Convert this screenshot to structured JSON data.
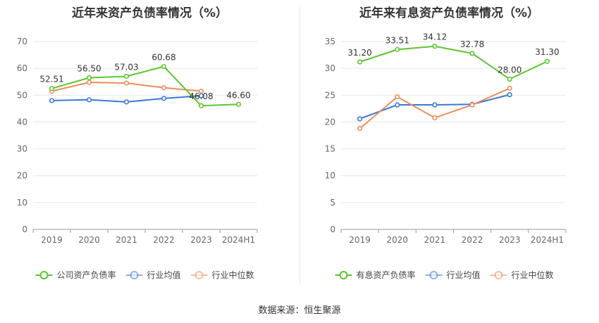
{
  "source_text": "数据来源：恒生聚源",
  "colors": {
    "primary": "#5cc52f",
    "avg": "#3a78d8",
    "median": "#f08c5a",
    "grid": "#e6e6e6",
    "axis": "#999999"
  },
  "chart_data": [
    {
      "type": "line",
      "title": "近年来资产负债率情况（%）",
      "categories": [
        "2019",
        "2020",
        "2021",
        "2022",
        "2023",
        "2024H1"
      ],
      "ylim": [
        0,
        70
      ],
      "yticks": [
        0,
        10,
        20,
        30,
        40,
        50,
        60,
        70
      ],
      "series": [
        {
          "name": "公司资产负债率",
          "values": [
            52.51,
            56.5,
            57.03,
            60.68,
            46.08,
            46.6
          ],
          "labels": [
            "52.51",
            "56.50",
            "57.03",
            "60.68",
            "46.08",
            "46.60"
          ]
        },
        {
          "name": "行业均值",
          "values": [
            48.0,
            48.3,
            47.5,
            48.8,
            49.8,
            null
          ]
        },
        {
          "name": "行业中位数",
          "values": [
            51.5,
            54.8,
            54.5,
            52.8,
            51.5,
            null
          ]
        }
      ],
      "legend_position": "bottom",
      "grid": true
    },
    {
      "type": "line",
      "title": "近年来有息资产负债率情况（%）",
      "categories": [
        "2019",
        "2020",
        "2021",
        "2022",
        "2023",
        "2024H1"
      ],
      "ylim": [
        0,
        35
      ],
      "yticks": [
        0,
        5,
        10,
        15,
        20,
        25,
        30,
        35
      ],
      "series": [
        {
          "name": "有息资产负债率",
          "values": [
            31.2,
            33.51,
            34.12,
            32.78,
            28.0,
            31.3
          ],
          "labels": [
            "31.20",
            "33.51",
            "34.12",
            "32.78",
            "28.00",
            "31.30"
          ]
        },
        {
          "name": "行业均值",
          "values": [
            20.6,
            23.2,
            23.2,
            23.3,
            25.1,
            null
          ]
        },
        {
          "name": "行业中位数",
          "values": [
            18.8,
            24.7,
            20.8,
            23.2,
            26.3,
            null
          ]
        }
      ],
      "legend_position": "bottom",
      "grid": true
    }
  ]
}
